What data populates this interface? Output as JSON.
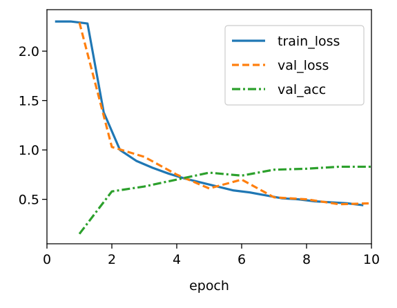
{
  "chart_data": {
    "type": "line",
    "title": "",
    "xlabel": "epoch",
    "ylabel": "",
    "xlim": [
      0,
      10
    ],
    "ylim": [
      0.05,
      2.42
    ],
    "xticks": [
      0,
      2,
      4,
      6,
      8,
      10
    ],
    "xtick_labels": [
      "0",
      "2",
      "4",
      "6",
      "8",
      "10"
    ],
    "yticks": [
      0.5,
      1.0,
      1.5,
      2.0
    ],
    "ytick_labels": [
      "0.5",
      "1.0",
      "1.5",
      "2.0"
    ],
    "grid": false,
    "legend_position": "top-right",
    "series": [
      {
        "name": "train_loss",
        "color": "#1f77b4",
        "style": "solid",
        "x": [
          0.25,
          0.5,
          0.75,
          1.0,
          1.25,
          1.75,
          2.25,
          2.75,
          3.25,
          3.75,
          4.25,
          4.75,
          5.25,
          5.75,
          6.25,
          6.75,
          7.25,
          7.75,
          8.25,
          8.75,
          9.25,
          9.75
        ],
        "y": [
          2.3,
          2.3,
          2.3,
          2.29,
          2.28,
          1.38,
          1.0,
          0.89,
          0.82,
          0.76,
          0.71,
          0.67,
          0.63,
          0.59,
          0.57,
          0.54,
          0.51,
          0.5,
          0.48,
          0.47,
          0.46,
          0.44
        ]
      },
      {
        "name": "val_loss",
        "color": "#ff7f0e",
        "style": "dashed",
        "x": [
          1,
          2,
          3,
          4,
          5,
          6,
          7,
          8,
          9,
          10
        ],
        "y": [
          2.29,
          1.03,
          0.93,
          0.75,
          0.61,
          0.7,
          0.52,
          0.5,
          0.45,
          0.46
        ]
      },
      {
        "name": "val_acc",
        "color": "#2ca02c",
        "style": "dashdot",
        "x": [
          1,
          2,
          3,
          4,
          5,
          6,
          7,
          8,
          9,
          10
        ],
        "y": [
          0.15,
          0.58,
          0.63,
          0.7,
          0.77,
          0.74,
          0.8,
          0.81,
          0.83,
          0.83
        ]
      }
    ]
  }
}
